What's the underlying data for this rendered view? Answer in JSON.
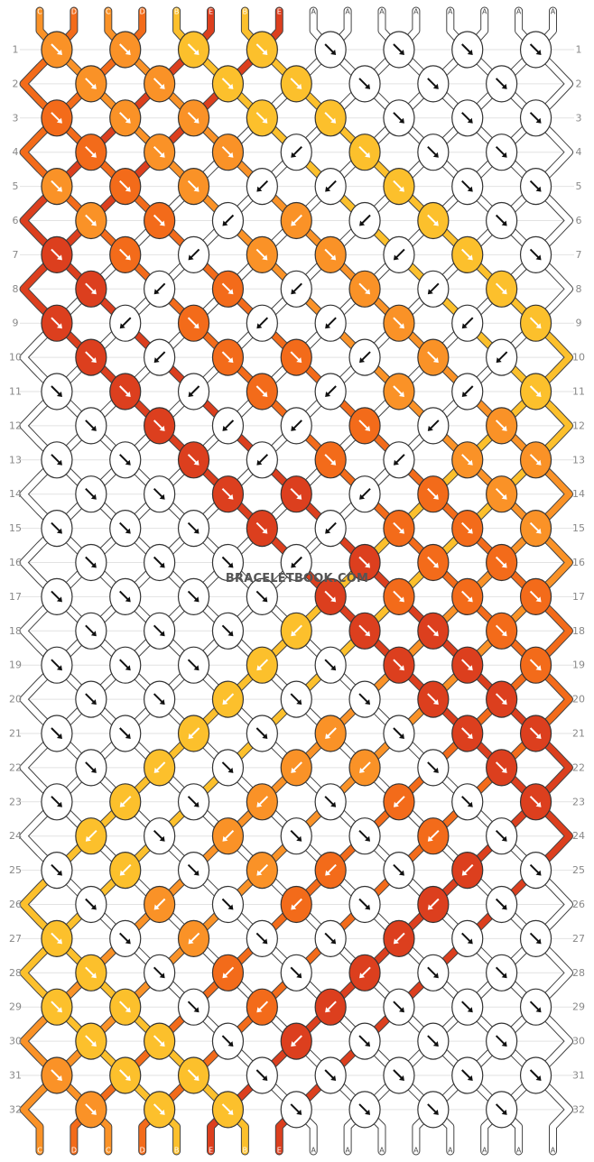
{
  "watermark": "BRACELETBOOK.COM",
  "palette": {
    "A": "#ffffff",
    "B": "#fcc02c",
    "C": "#fa9227",
    "D": "#f36b1a",
    "E": "#dc3f1e"
  },
  "strands_top": [
    "C",
    "D",
    "C",
    "D",
    "B",
    "E",
    "B",
    "E",
    "A",
    "A",
    "A",
    "A",
    "A",
    "A",
    "A",
    "A"
  ],
  "strands_bottom": [
    "C",
    "D",
    "C",
    "D",
    "B",
    "E",
    "B",
    "E",
    "A",
    "A",
    "A",
    "A",
    "A",
    "A",
    "A",
    "A"
  ],
  "row_numbers": [
    1,
    2,
    3,
    4,
    5,
    6,
    7,
    8,
    9,
    10,
    11,
    12,
    13,
    14,
    15,
    16,
    17,
    18,
    19,
    20,
    21,
    22,
    23,
    24,
    25,
    26,
    27,
    28,
    29,
    30,
    31,
    32
  ],
  "knots": [
    "CR CR BR BR AR AR AR AR",
    "CR CR BR BR AR AR AR",
    "DR CR CR BR BR AR AR AR",
    "DR CR CR AL BR AR AR",
    "CR DR CR AL AL BR AR AR",
    "CR DR AL CL AL BR AR",
    "ER DR AL CR CR AL BR AR",
    "ER AL DR AL CR AL BR",
    "ER AL DR AL AL CR AL BR",
    "ER AL DR DR AL CR AL",
    "AR ER AL DR AL CR AL BR",
    "AR ER AL AL DR AL CR",
    "AR AR ER AL DR AL CR CR",
    "AR AR ER ER AL DR CR",
    "AR AR AR ER AL DR DR CR",
    "AR AR AR AL ER DR DR",
    "AR AR AR AR ER DR DR DR",
    "AR AR AR BL ER ER DR",
    "AR AR AR BL AR ER ER DR",
    "AR AR BL AR AR ER ER",
    "AR AR BL AR CL AR ER ER",
    "AR BL AR CL CL AR ER",
    "AR BL AR CL AR DL AR ER",
    "BL AR CL AR AR DL AR",
    "AR BL AR CL DL AR EL AR",
    "AR CL AR DL AR EL AR",
    "BR AR CL AR AR EL AR AR",
    "BR AR DL AR EL AR AR",
    "BR BR AR DL EL AR AR AR",
    "BR BR AR EL AR AR AR",
    "CR BR BR AR AR AR AR AR",
    "CR BR BR AR AR AR AR"
  ]
}
